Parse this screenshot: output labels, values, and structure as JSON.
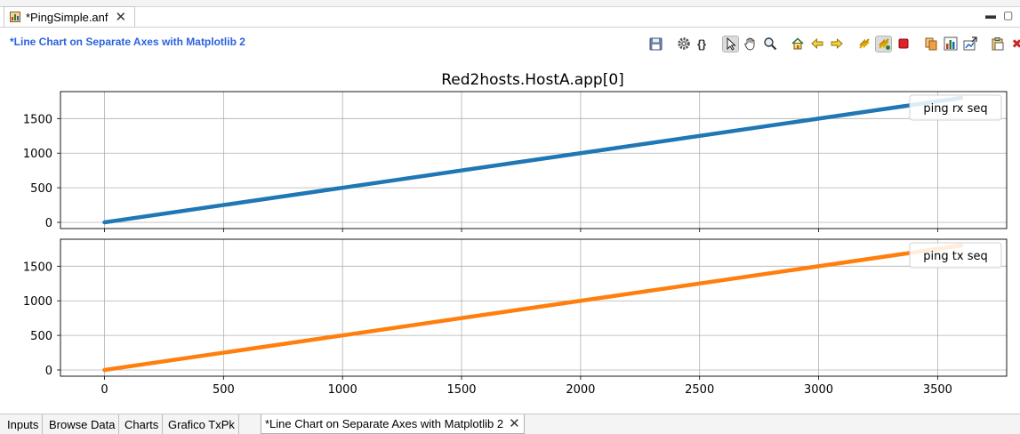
{
  "editor": {
    "tab_label": "*PingSimple.anf",
    "close_symbol": "✕",
    "minimize_symbol": "▬",
    "maximize_symbol": "▢"
  },
  "header": {
    "chart_name": "*Line Chart on Separate Axes with Matplotlib 2",
    "close_symbol": "✖"
  },
  "toolbar": {
    "buttons": [
      "save-icon",
      "settings-gear-icon",
      "braces-icon",
      "pointer-arrow-icon",
      "pan-hand-icon",
      "zoom-magnifier-icon",
      "home-icon",
      "back-arrow-icon",
      "forward-arrow-icon",
      "refresh-icon",
      "auto-refresh-icon",
      "stop-icon",
      "copy-icon",
      "export-data-icon",
      "export-image-icon",
      "copy-to-clipboard-icon",
      "close-red-x-icon"
    ]
  },
  "chart_data": {
    "type": "line",
    "title": "Red2hosts.HostA.app[0]",
    "x_ticks": [
      "0",
      "500",
      "1000",
      "1500",
      "2000",
      "2500",
      "3000",
      "3500"
    ],
    "y_ticks": [
      "0",
      "500",
      "1000",
      "1500"
    ],
    "xlim": [
      -185,
      3790
    ],
    "ylim": [
      -90,
      1890
    ],
    "grid": true,
    "legend_placement": "top-right",
    "series": [
      {
        "name": "ping rx seq",
        "x": [
          0,
          3600
        ],
        "values": [
          0,
          1800
        ],
        "color": "#1f77b4"
      },
      {
        "name": "ping tx seq",
        "x": [
          0,
          3600
        ],
        "values": [
          0,
          1800
        ],
        "color": "#ff7f0e"
      }
    ]
  },
  "bottom_tabs": {
    "items": [
      "Inputs",
      "Browse Data",
      "Charts",
      "Grafico TxPk"
    ],
    "active": "*Line Chart on Separate Axes with Matplotlib 2",
    "close_symbol": "✕"
  }
}
